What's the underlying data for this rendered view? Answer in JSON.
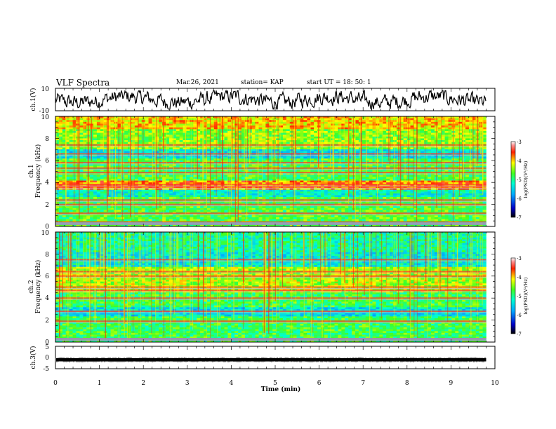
{
  "header": {
    "title": "VLF Spectra",
    "date": "Mar.26, 2021",
    "station": "station= KAP",
    "start": "start  UT  =   18: 50: 1"
  },
  "chart_data": [
    {
      "type": "line",
      "title": "",
      "ylabel": "ch.1(V)",
      "xlim": [
        0,
        10
      ],
      "ylim": [
        -10,
        10
      ],
      "ytick_labels": [
        "-10",
        "10"
      ],
      "description_values": "waveform oscillating roughly between -8 and 7 V over 0-9.8 min"
    },
    {
      "type": "heatmap",
      "ylabel_line1": "ch.1",
      "ylabel_line2": "Frequency  (kHz)",
      "xlim": [
        0,
        10
      ],
      "ylim": [
        0,
        10
      ],
      "ytick_labels": [
        "0",
        "2",
        "4",
        "6",
        "8",
        "10"
      ],
      "colorbar": {
        "label": "log(PSD)(V²/Hz)",
        "range": [
          -7,
          -3
        ],
        "tick_labels": [
          "-3",
          "-4",
          "-5",
          "-6",
          "-7"
        ]
      },
      "bands_khz": [
        0.4,
        1.2,
        2.0,
        2.4,
        3.6,
        3.8,
        4.9,
        5.3,
        5.8,
        6.6,
        7.4
      ]
    },
    {
      "type": "heatmap",
      "ylabel_line1": "ch.2",
      "ylabel_line2": "Frequency  (kHz)",
      "xlim": [
        0,
        10
      ],
      "ylim": [
        0,
        10
      ],
      "ytick_labels": [
        "0",
        "2",
        "4",
        "6",
        "8",
        "10"
      ],
      "colorbar": {
        "label": "log(PSD)(V²/Hz)",
        "range": [
          -7,
          -3
        ],
        "tick_labels": [
          "-3",
          "-4",
          "-5",
          "-6",
          "-7"
        ]
      },
      "bands_khz": [
        0.3,
        1.9,
        2.8,
        4.0,
        4.7,
        5.0,
        6.0,
        6.4,
        7.5
      ]
    },
    {
      "type": "line",
      "ylabel": "ch.3(V)",
      "xlim": [
        0,
        10
      ],
      "ylim": [
        -5,
        5
      ],
      "ytick_labels": [
        "-5",
        "0",
        "5"
      ],
      "xlabel": "Time  (min)",
      "xtick_labels": [
        "0",
        "1",
        "2",
        "3",
        "4",
        "5",
        "6",
        "7",
        "8",
        "9",
        "10"
      ]
    }
  ]
}
